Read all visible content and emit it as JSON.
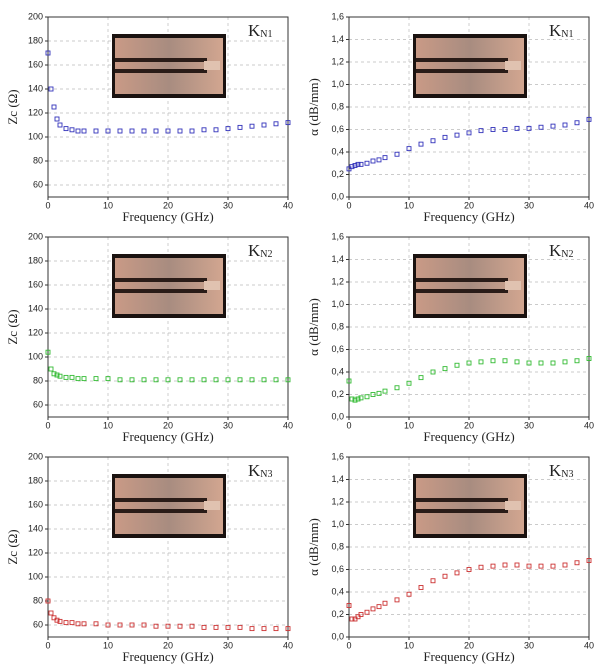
{
  "chart_data": [
    {
      "type": "scatter",
      "annotation": {
        "main": "K",
        "sub": "N1"
      },
      "x_label": "Frequency (GHz)",
      "y_label": "Zc (Ω)",
      "color": "#3333bb",
      "x": [
        0,
        0.5,
        1,
        1.5,
        2,
        3,
        4,
        5,
        6,
        8,
        10,
        12,
        14,
        16,
        18,
        20,
        22,
        24,
        26,
        28,
        30,
        32,
        34,
        36,
        38,
        40
      ],
      "values": [
        170,
        140,
        125,
        115,
        110,
        107,
        106,
        105,
        105,
        105,
        105,
        105,
        105,
        105,
        105,
        105,
        105,
        105,
        106,
        106,
        107,
        108,
        109,
        110,
        111,
        112
      ],
      "xlim": [
        0,
        40
      ],
      "xticks": [
        0,
        10,
        20,
        30,
        40
      ],
      "ylim": [
        50,
        200
      ],
      "yticks": [
        60,
        80,
        100,
        120,
        140,
        160,
        180,
        200
      ],
      "grid": true
    },
    {
      "type": "scatter",
      "annotation": {
        "main": "K",
        "sub": "N1"
      },
      "x_label": "Frequency (GHz)",
      "y_label": "α (dB/mm)",
      "color": "#3333bb",
      "x": [
        0,
        0.5,
        1,
        1.5,
        2,
        3,
        4,
        5,
        6,
        8,
        10,
        12,
        14,
        16,
        18,
        20,
        22,
        24,
        26,
        28,
        30,
        32,
        34,
        36,
        38,
        40
      ],
      "values": [
        0.25,
        0.27,
        0.28,
        0.29,
        0.29,
        0.3,
        0.32,
        0.33,
        0.35,
        0.38,
        0.43,
        0.47,
        0.5,
        0.53,
        0.55,
        0.57,
        0.59,
        0.6,
        0.6,
        0.61,
        0.61,
        0.62,
        0.63,
        0.64,
        0.66,
        0.69
      ],
      "xlim": [
        0,
        40
      ],
      "xticks": [
        0,
        10,
        20,
        30,
        40
      ],
      "ylim": [
        0,
        1.6
      ],
      "yticks": [
        {
          "value": 0,
          "label": "0,0"
        },
        {
          "value": 0.2,
          "label": "0,2"
        },
        {
          "value": 0.4,
          "label": "0,4"
        },
        {
          "value": 0.6,
          "label": "0,6"
        },
        {
          "value": 0.8,
          "label": "0,8"
        },
        {
          "value": 1.0,
          "label": "1,0"
        },
        {
          "value": 1.2,
          "label": "1,2"
        },
        {
          "value": 1.4,
          "label": "1,4"
        },
        {
          "value": 1.6,
          "label": "1,6"
        }
      ],
      "grid": true
    },
    {
      "type": "scatter",
      "annotation": {
        "main": "K",
        "sub": "N2"
      },
      "x_label": "Frequency (GHz)",
      "y_label": "Zc (Ω)",
      "color": "#33bb33",
      "x": [
        0,
        0.5,
        1,
        1.5,
        2,
        3,
        4,
        5,
        6,
        8,
        10,
        12,
        14,
        16,
        18,
        20,
        22,
        24,
        26,
        28,
        30,
        32,
        34,
        36,
        38,
        40
      ],
      "values": [
        104,
        90,
        86,
        85,
        84,
        83,
        83,
        82,
        82,
        82,
        82,
        81,
        81,
        81,
        81,
        81,
        81,
        81,
        81,
        81,
        81,
        81,
        81,
        81,
        81,
        81
      ],
      "xlim": [
        0,
        40
      ],
      "xticks": [
        0,
        10,
        20,
        30,
        40
      ],
      "ylim": [
        50,
        200
      ],
      "yticks": [
        60,
        80,
        100,
        120,
        140,
        160,
        180,
        200
      ],
      "grid": true
    },
    {
      "type": "scatter",
      "annotation": {
        "main": "K",
        "sub": "N2"
      },
      "x_label": "Frequency (GHz)",
      "y_label": "α (dB/mm)",
      "color": "#33bb33",
      "x": [
        0,
        0.5,
        1,
        1.5,
        2,
        3,
        4,
        5,
        6,
        8,
        10,
        12,
        14,
        16,
        18,
        20,
        22,
        24,
        26,
        28,
        30,
        32,
        34,
        36,
        38,
        40
      ],
      "values": [
        0.32,
        0.16,
        0.15,
        0.16,
        0.17,
        0.18,
        0.2,
        0.21,
        0.23,
        0.26,
        0.3,
        0.35,
        0.4,
        0.43,
        0.46,
        0.48,
        0.49,
        0.5,
        0.5,
        0.49,
        0.48,
        0.48,
        0.48,
        0.49,
        0.5,
        0.52
      ],
      "xlim": [
        0,
        40
      ],
      "xticks": [
        0,
        10,
        20,
        30,
        40
      ],
      "ylim": [
        0,
        1.6
      ],
      "yticks": [
        {
          "value": 0,
          "label": "0,0"
        },
        {
          "value": 0.2,
          "label": "0,2"
        },
        {
          "value": 0.4,
          "label": "0,4"
        },
        {
          "value": 0.6,
          "label": "0,6"
        },
        {
          "value": 0.8,
          "label": "0,8"
        },
        {
          "value": 1.0,
          "label": "1,0"
        },
        {
          "value": 1.2,
          "label": "1,2"
        },
        {
          "value": 1.4,
          "label": "1,4"
        },
        {
          "value": 1.6,
          "label": "1,6"
        }
      ],
      "grid": true
    },
    {
      "type": "scatter",
      "annotation": {
        "main": "K",
        "sub": "N3"
      },
      "x_label": "Frequency (GHz)",
      "y_label": "Zc (Ω)",
      "color": "#cc3333",
      "x": [
        0,
        0.5,
        1,
        1.5,
        2,
        3,
        4,
        5,
        6,
        8,
        10,
        12,
        14,
        16,
        18,
        20,
        22,
        24,
        26,
        28,
        30,
        32,
        34,
        36,
        38,
        40
      ],
      "values": [
        80,
        70,
        66,
        64,
        63,
        62,
        62,
        61,
        61,
        61,
        60,
        60,
        60,
        60,
        59,
        59,
        59,
        59,
        58,
        58,
        58,
        58,
        57,
        57,
        57,
        57
      ],
      "xlim": [
        0,
        40
      ],
      "xticks": [
        0,
        10,
        20,
        30,
        40
      ],
      "ylim": [
        50,
        200
      ],
      "yticks": [
        60,
        80,
        100,
        120,
        140,
        160,
        180,
        200
      ],
      "grid": true
    },
    {
      "type": "scatter",
      "annotation": {
        "main": "K",
        "sub": "N3"
      },
      "x_label": "Frequency (GHz)",
      "y_label": "α (dB/mm)",
      "color": "#cc3333",
      "x": [
        0,
        0.5,
        1,
        1.5,
        2,
        3,
        4,
        5,
        6,
        8,
        10,
        12,
        14,
        16,
        18,
        20,
        22,
        24,
        26,
        28,
        30,
        32,
        34,
        36,
        38,
        40
      ],
      "values": [
        0.28,
        0.16,
        0.16,
        0.18,
        0.2,
        0.22,
        0.25,
        0.27,
        0.3,
        0.33,
        0.38,
        0.44,
        0.5,
        0.54,
        0.57,
        0.6,
        0.62,
        0.63,
        0.64,
        0.64,
        0.63,
        0.63,
        0.63,
        0.64,
        0.66,
        0.68
      ],
      "xlim": [
        0,
        40
      ],
      "xticks": [
        0,
        10,
        20,
        30,
        40
      ],
      "ylim": [
        0,
        1.6
      ],
      "yticks": [
        {
          "value": 0,
          "label": "0,0"
        },
        {
          "value": 0.2,
          "label": "0,2"
        },
        {
          "value": 0.4,
          "label": "0,4"
        },
        {
          "value": 0.6,
          "label": "0,6"
        },
        {
          "value": 0.8,
          "label": "0,8"
        },
        {
          "value": 1.0,
          "label": "1,0"
        },
        {
          "value": 1.2,
          "label": "1,2"
        },
        {
          "value": 1.4,
          "label": "1,4"
        },
        {
          "value": 1.6,
          "label": "1,6"
        }
      ],
      "grid": true
    }
  ]
}
